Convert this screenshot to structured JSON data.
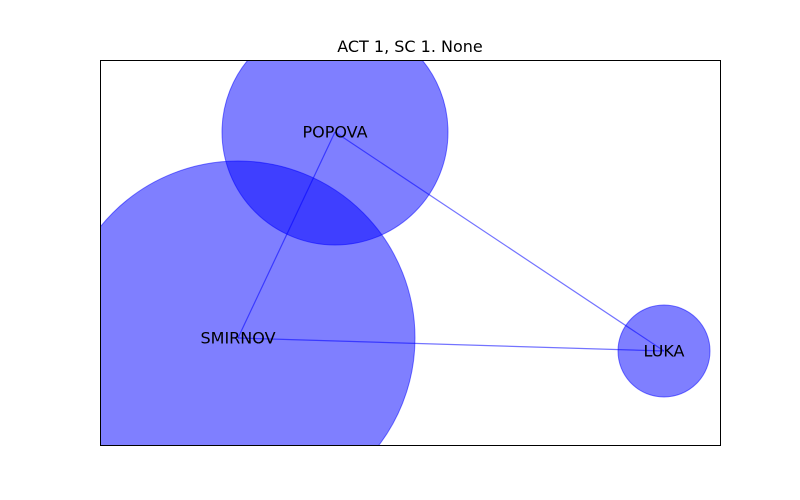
{
  "figure": {
    "title": "ACT 1, SC 1. None"
  },
  "colors": {
    "node_fill": "#0000ff",
    "edge_stroke": "#0000ff",
    "frame": "#000000"
  },
  "nodes": [
    {
      "id": "popova",
      "label": "POPOVA"
    },
    {
      "id": "smirnov",
      "label": "SMIRNOV"
    },
    {
      "id": "luka",
      "label": "LUKA"
    }
  ],
  "edges": [
    {
      "from": "popova",
      "to": "smirnov"
    },
    {
      "from": "popova",
      "to": "luka"
    },
    {
      "from": "smirnov",
      "to": "luka"
    }
  ]
}
